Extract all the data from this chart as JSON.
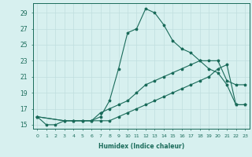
{
  "xlabel": "Humidex (Indice chaleur)",
  "background_color": "#d7f0ef",
  "grid_color": "#c0dede",
  "line_color": "#1a6b5a",
  "xlim": [
    -0.5,
    23.5
  ],
  "ylim": [
    14.5,
    30.2
  ],
  "yticks": [
    15,
    17,
    19,
    21,
    23,
    25,
    27,
    29
  ],
  "xticks": [
    0,
    1,
    2,
    3,
    4,
    5,
    6,
    7,
    8,
    9,
    10,
    11,
    12,
    13,
    14,
    15,
    16,
    17,
    18,
    19,
    20,
    21,
    22,
    23
  ],
  "line1_x": [
    0,
    1,
    2,
    3,
    4,
    5,
    6,
    7,
    8,
    9,
    10,
    11,
    12,
    13,
    14,
    15,
    16,
    17,
    18,
    19,
    20,
    21,
    22,
    23
  ],
  "line1_y": [
    16.0,
    15.0,
    15.0,
    15.5,
    15.5,
    15.5,
    15.5,
    16.0,
    18.0,
    22.0,
    26.5,
    27.0,
    29.5,
    29.0,
    27.5,
    25.5,
    24.5,
    24.0,
    23.0,
    23.0,
    23.0,
    20.5,
    20.0,
    20.0
  ],
  "line2_x": [
    0,
    3,
    4,
    5,
    6,
    7,
    8,
    9,
    10,
    11,
    12,
    13,
    14,
    15,
    16,
    17,
    18,
    19,
    20,
    21,
    22,
    23
  ],
  "line2_y": [
    16.0,
    15.5,
    15.5,
    15.5,
    15.5,
    15.5,
    15.5,
    16.0,
    16.5,
    17.0,
    17.5,
    18.0,
    18.5,
    19.0,
    19.5,
    20.0,
    20.5,
    21.0,
    22.0,
    22.5,
    17.5,
    17.5
  ],
  "line3_x": [
    0,
    3,
    4,
    5,
    6,
    7,
    8,
    9,
    10,
    11,
    12,
    13,
    14,
    15,
    16,
    17,
    18,
    19,
    20,
    21,
    22,
    23
  ],
  "line3_y": [
    16.0,
    15.5,
    15.5,
    15.5,
    15.5,
    16.5,
    17.0,
    17.5,
    18.0,
    19.0,
    20.0,
    20.5,
    21.0,
    21.5,
    22.0,
    22.5,
    23.0,
    22.0,
    21.5,
    20.0,
    17.5,
    17.5
  ]
}
